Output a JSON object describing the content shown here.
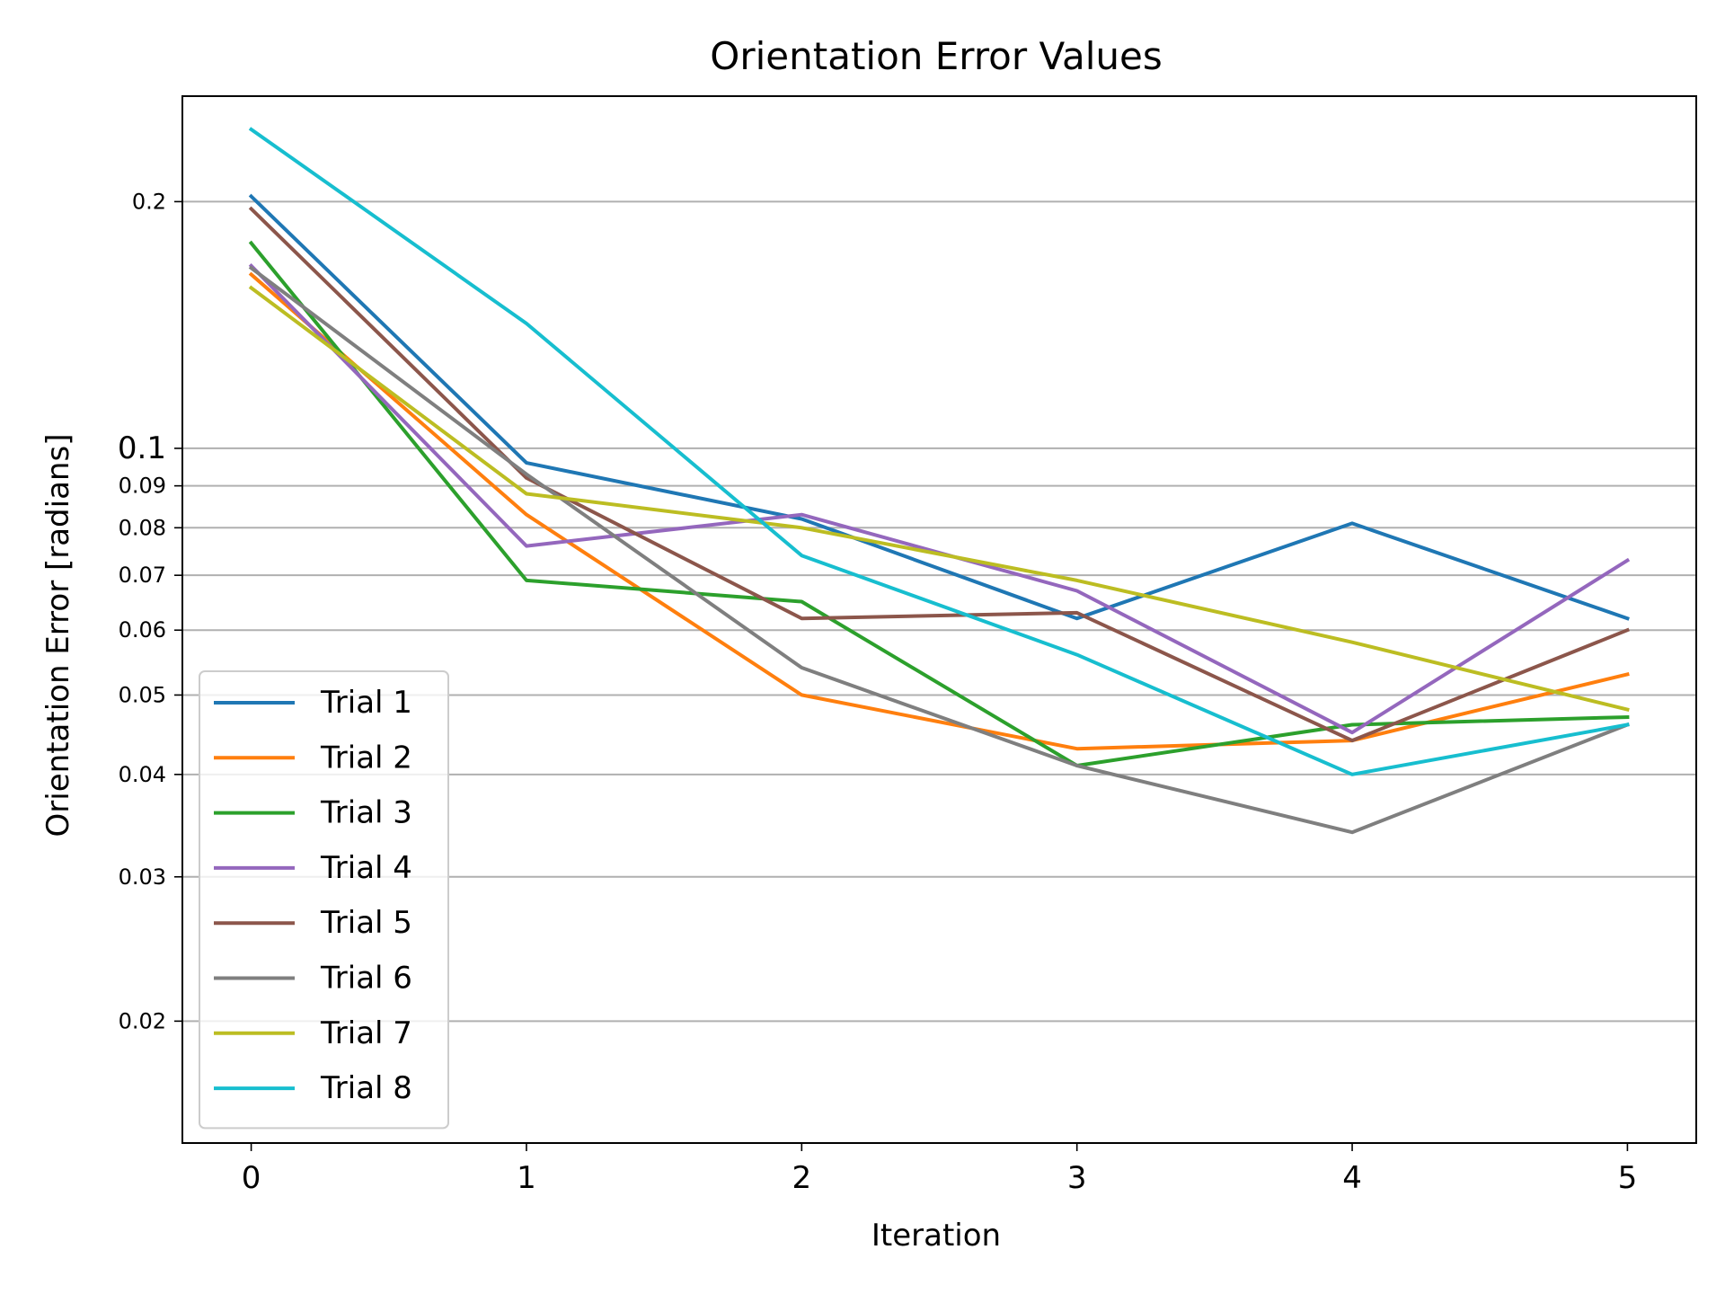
{
  "chart_data": {
    "type": "line",
    "title": "Orientation Error Values",
    "xlabel": "Iteration",
    "ylabel": "Orientation Error [radians]",
    "x": [
      0,
      1,
      2,
      3,
      4,
      5
    ],
    "xlim": [
      -0.25,
      5.25
    ],
    "yscale": "log",
    "ylim": [
      0.0142,
      0.269
    ],
    "y_ticks": [
      {
        "value": 0.02,
        "label": "0.02",
        "major": false
      },
      {
        "value": 0.03,
        "label": "0.03",
        "major": false
      },
      {
        "value": 0.04,
        "label": "0.04",
        "major": false
      },
      {
        "value": 0.05,
        "label": "0.05",
        "major": false
      },
      {
        "value": 0.06,
        "label": "0.06",
        "major": false
      },
      {
        "value": 0.07,
        "label": "0.07",
        "major": false
      },
      {
        "value": 0.08,
        "label": "0.08",
        "major": false
      },
      {
        "value": 0.09,
        "label": "0.09",
        "major": false
      },
      {
        "value": 0.1,
        "label": "0.1",
        "major": true
      },
      {
        "value": 0.2,
        "label": "0.2",
        "major": false
      }
    ],
    "grid": "y",
    "legend_position": "lower-left",
    "series": [
      {
        "name": "Trial 1",
        "color": "#1f77b4",
        "values": [
          0.203,
          0.096,
          0.082,
          0.062,
          0.081,
          0.062
        ]
      },
      {
        "name": "Trial 2",
        "color": "#ff7f0e",
        "values": [
          0.163,
          0.083,
          0.05,
          0.043,
          0.044,
          0.053
        ]
      },
      {
        "name": "Trial 3",
        "color": "#2ca02c",
        "values": [
          0.178,
          0.069,
          0.065,
          0.041,
          0.046,
          0.047
        ]
      },
      {
        "name": "Trial 4",
        "color": "#9467bd",
        "values": [
          0.167,
          0.076,
          0.083,
          0.067,
          0.045,
          0.073
        ]
      },
      {
        "name": "Trial 5",
        "color": "#8c564b",
        "values": [
          0.196,
          0.092,
          0.062,
          0.063,
          0.044,
          0.06
        ]
      },
      {
        "name": "Trial 6",
        "color": "#7f7f7f",
        "values": [
          0.166,
          0.093,
          0.054,
          0.041,
          0.034,
          0.046
        ]
      },
      {
        "name": "Trial 7",
        "color": "#bcbd22",
        "values": [
          0.157,
          0.088,
          0.08,
          0.069,
          0.058,
          0.048
        ]
      },
      {
        "name": "Trial 8",
        "color": "#17becf",
        "values": [
          0.245,
          0.142,
          0.074,
          0.056,
          0.04,
          0.046
        ]
      }
    ]
  }
}
